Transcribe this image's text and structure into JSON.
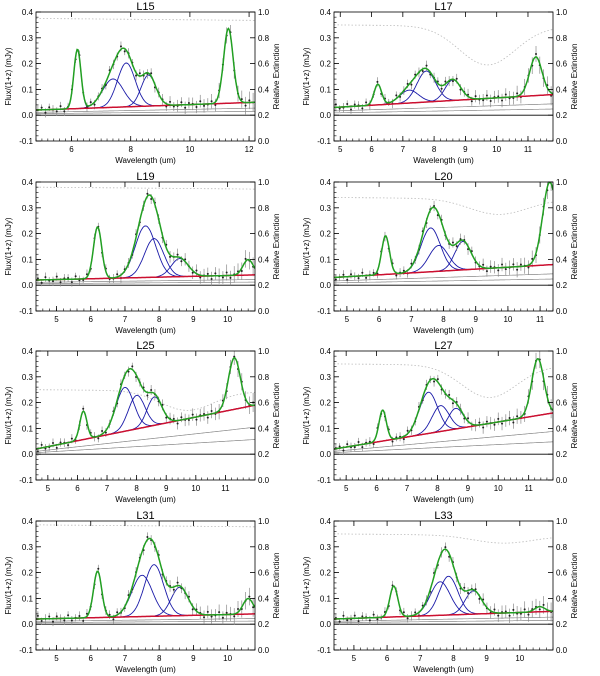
{
  "figure": {
    "ylabel_left": "Flux/(1+z) (mJy)",
    "ylabel_right": "Relative Extinction",
    "xlabel": "Wavelength (um)",
    "colors": {
      "total_fit": "#22a022",
      "pah_features": "#1a1aa8",
      "continuum": "#cc1030",
      "dust_components": "#888888",
      "data_points": "#222222",
      "error_bars": "#8a8a8a",
      "extinction": "#bbbbbb"
    }
  },
  "chart_data": [
    {
      "type": "line",
      "title": "L15",
      "xlim": [
        4.8,
        12.2
      ],
      "xticks": [
        6,
        8,
        10,
        12
      ],
      "ylim": [
        -0.1,
        0.4
      ],
      "yticks": [
        -0.1,
        0.0,
        0.1,
        0.2,
        0.3,
        0.4
      ],
      "y2lim": [
        0.0,
        1.0
      ],
      "y2ticks": [
        0.0,
        0.2,
        0.4,
        0.6,
        0.8,
        1.0
      ],
      "continuum": {
        "start": 0.02,
        "end": 0.05
      },
      "features": [
        {
          "center": 6.2,
          "height": 0.23,
          "width": 0.12
        },
        {
          "center": 7.4,
          "height": 0.11,
          "width": 0.35
        },
        {
          "center": 7.85,
          "height": 0.17,
          "width": 0.3
        },
        {
          "center": 8.6,
          "height": 0.12,
          "width": 0.25
        },
        {
          "center": 11.3,
          "height": 0.29,
          "width": 0.16
        }
      ],
      "extinction": {
        "base": 0.95,
        "dip_center": 0,
        "dip_depth": 0
      }
    },
    {
      "type": "line",
      "title": "L17",
      "xlim": [
        4.8,
        11.8
      ],
      "xticks": [
        5,
        6,
        7,
        8,
        9,
        10,
        11
      ],
      "ylim": [
        -0.1,
        0.4
      ],
      "yticks": [
        -0.1,
        0.0,
        0.1,
        0.2,
        0.3,
        0.4
      ],
      "y2lim": [
        0.0,
        1.0
      ],
      "y2ticks": [
        0.0,
        0.2,
        0.4,
        0.6,
        0.8,
        1.0
      ],
      "continuum": {
        "start": 0.03,
        "end": 0.08
      },
      "features": [
        {
          "center": 6.2,
          "height": 0.08,
          "width": 0.12
        },
        {
          "center": 7.2,
          "height": 0.05,
          "width": 0.3
        },
        {
          "center": 7.75,
          "height": 0.12,
          "width": 0.3
        },
        {
          "center": 8.6,
          "height": 0.08,
          "width": 0.25
        },
        {
          "center": 11.25,
          "height": 0.15,
          "width": 0.2
        }
      ],
      "extinction": {
        "base": 0.9,
        "dip_center": 9.7,
        "dip_depth": 0.3
      }
    },
    {
      "type": "line",
      "title": "L19",
      "xlim": [
        4.4,
        10.8
      ],
      "xticks": [
        5,
        6,
        7,
        8,
        9,
        10
      ],
      "ylim": [
        -0.1,
        0.4
      ],
      "yticks": [
        -0.1,
        0.0,
        0.1,
        0.2,
        0.3,
        0.4
      ],
      "y2lim": [
        0.0,
        1.0
      ],
      "y2ticks": [
        0.0,
        0.2,
        0.4,
        0.6,
        0.8,
        1.0
      ],
      "continuum": {
        "start": 0.02,
        "end": 0.04
      },
      "features": [
        {
          "center": 6.2,
          "height": 0.2,
          "width": 0.12
        },
        {
          "center": 7.6,
          "height": 0.2,
          "width": 0.3
        },
        {
          "center": 7.85,
          "height": 0.15,
          "width": 0.28
        },
        {
          "center": 8.6,
          "height": 0.07,
          "width": 0.25
        },
        {
          "center": 10.6,
          "height": 0.06,
          "width": 0.15
        }
      ],
      "extinction": {
        "base": 0.96,
        "dip_center": 0,
        "dip_depth": 0
      }
    },
    {
      "type": "line",
      "title": "L20",
      "xlim": [
        4.6,
        11.4
      ],
      "xticks": [
        5,
        6,
        7,
        8,
        9,
        10,
        11
      ],
      "ylim": [
        -0.1,
        0.4
      ],
      "yticks": [
        -0.1,
        0.0,
        0.1,
        0.2,
        0.3,
        0.4
      ],
      "y2lim": [
        0.0,
        1.0
      ],
      "y2ticks": [
        0.0,
        0.2,
        0.4,
        0.6,
        0.8,
        1.0
      ],
      "continuum": {
        "start": 0.03,
        "end": 0.08
      },
      "features": [
        {
          "center": 6.2,
          "height": 0.15,
          "width": 0.12
        },
        {
          "center": 7.6,
          "height": 0.17,
          "width": 0.3
        },
        {
          "center": 7.85,
          "height": 0.1,
          "width": 0.3
        },
        {
          "center": 8.6,
          "height": 0.11,
          "width": 0.25
        },
        {
          "center": 11.3,
          "height": 0.32,
          "width": 0.22
        }
      ],
      "extinction": {
        "base": 0.88,
        "dip_center": 9.7,
        "dip_depth": 0.12
      }
    },
    {
      "type": "line",
      "title": "L25",
      "xlim": [
        4.6,
        12.0
      ],
      "xticks": [
        5,
        6,
        7,
        8,
        9,
        10,
        11
      ],
      "ylim": [
        -0.1,
        0.4
      ],
      "yticks": [
        -0.1,
        0.0,
        0.1,
        0.2,
        0.3,
        0.4
      ],
      "y2lim": [
        0.0,
        1.0
      ],
      "y2ticks": [
        0.0,
        0.2,
        0.4,
        0.6,
        0.8,
        1.0
      ],
      "continuum": {
        "start": 0.02,
        "end": 0.19
      },
      "features": [
        {
          "center": 6.2,
          "height": 0.11,
          "width": 0.12
        },
        {
          "center": 7.6,
          "height": 0.17,
          "width": 0.3
        },
        {
          "center": 8.0,
          "height": 0.13,
          "width": 0.28
        },
        {
          "center": 8.6,
          "height": 0.11,
          "width": 0.25
        },
        {
          "center": 11.3,
          "height": 0.2,
          "width": 0.2
        }
      ],
      "extinction": {
        "base": 0.7,
        "dip_center": 9.7,
        "dip_depth": 0.15
      }
    },
    {
      "type": "line",
      "title": "L27",
      "xlim": [
        4.6,
        11.8
      ],
      "xticks": [
        5,
        6,
        7,
        8,
        9,
        10,
        11
      ],
      "ylim": [
        -0.1,
        0.4
      ],
      "yticks": [
        -0.1,
        0.0,
        0.1,
        0.2,
        0.3,
        0.4
      ],
      "y2lim": [
        0.0,
        1.0
      ],
      "y2ticks": [
        0.0,
        0.2,
        0.4,
        0.6,
        0.8,
        1.0
      ],
      "continuum": {
        "start": 0.02,
        "end": 0.16
      },
      "features": [
        {
          "center": 6.2,
          "height": 0.12,
          "width": 0.12
        },
        {
          "center": 7.7,
          "height": 0.16,
          "width": 0.3
        },
        {
          "center": 8.1,
          "height": 0.1,
          "width": 0.28
        },
        {
          "center": 8.6,
          "height": 0.08,
          "width": 0.25
        },
        {
          "center": 11.3,
          "height": 0.22,
          "width": 0.2
        }
      ],
      "extinction": {
        "base": 0.9,
        "dip_center": 9.7,
        "dip_depth": 0.25
      }
    },
    {
      "type": "line",
      "title": "L31",
      "xlim": [
        4.4,
        10.8
      ],
      "xticks": [
        5,
        6,
        7,
        8,
        9,
        10
      ],
      "ylim": [
        -0.1,
        0.4
      ],
      "yticks": [
        -0.1,
        0.0,
        0.1,
        0.2,
        0.3,
        0.4
      ],
      "y2lim": [
        0.0,
        1.0
      ],
      "y2ticks": [
        0.0,
        0.2,
        0.4,
        0.6,
        0.8,
        1.0
      ],
      "continuum": {
        "start": 0.02,
        "end": 0.04
      },
      "features": [
        {
          "center": 6.2,
          "height": 0.18,
          "width": 0.12
        },
        {
          "center": 7.5,
          "height": 0.16,
          "width": 0.3
        },
        {
          "center": 7.85,
          "height": 0.2,
          "width": 0.28
        },
        {
          "center": 8.6,
          "height": 0.11,
          "width": 0.25
        },
        {
          "center": 10.6,
          "height": 0.06,
          "width": 0.15
        }
      ],
      "extinction": {
        "base": 0.97,
        "dip_center": 0,
        "dip_depth": 0
      }
    },
    {
      "type": "line",
      "title": "L33",
      "xlim": [
        4.4,
        11.0
      ],
      "xticks": [
        5,
        6,
        7,
        8,
        9,
        10
      ],
      "ylim": [
        -0.1,
        0.4
      ],
      "yticks": [
        -0.1,
        0.0,
        0.1,
        0.2,
        0.3,
        0.4
      ],
      "y2lim": [
        0.0,
        1.0
      ],
      "y2ticks": [
        0.0,
        0.2,
        0.4,
        0.6,
        0.8,
        1.0
      ],
      "continuum": {
        "start": 0.02,
        "end": 0.05
      },
      "features": [
        {
          "center": 6.2,
          "height": 0.12,
          "width": 0.12
        },
        {
          "center": 7.6,
          "height": 0.13,
          "width": 0.3
        },
        {
          "center": 7.85,
          "height": 0.15,
          "width": 0.28
        },
        {
          "center": 8.6,
          "height": 0.09,
          "width": 0.25
        },
        {
          "center": 10.6,
          "height": 0.02,
          "width": 0.15
        }
      ],
      "extinction": {
        "base": 0.9,
        "dip_center": 9.5,
        "dip_depth": 0.06
      }
    }
  ]
}
